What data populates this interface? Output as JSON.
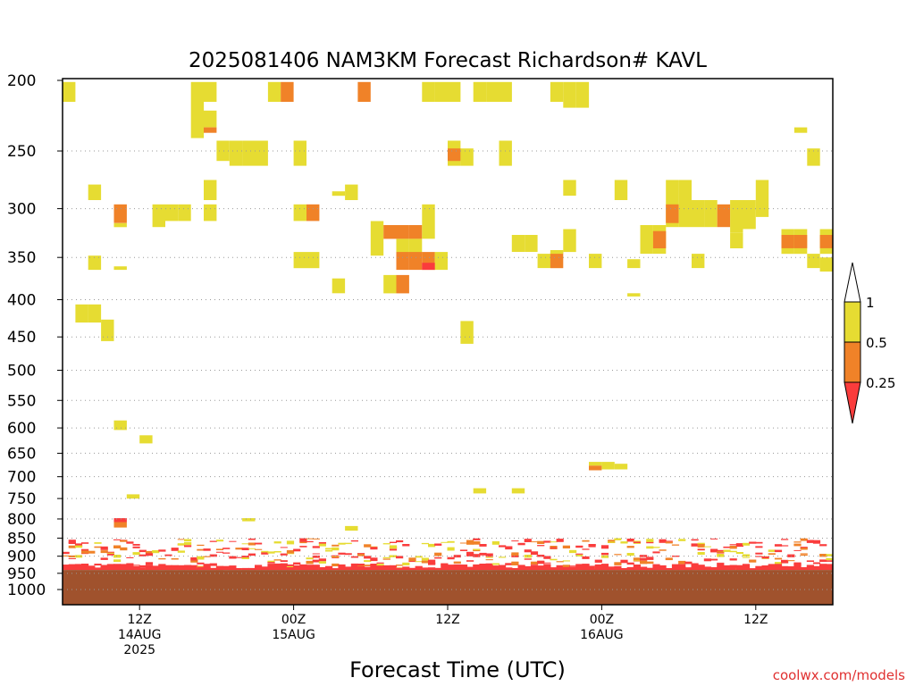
{
  "chart_data": {
    "type": "heatmap",
    "title": "2025081406 NAM3KM Forecast Richardson# KAVL",
    "xlabel": "Forecast Time (UTC)",
    "ylabel": "",
    "credit": "coolwx.com/models",
    "x_range_hours": [
      0,
      60
    ],
    "y_scale": "log-pressure",
    "y_range_hpa": [
      200,
      1000
    ],
    "y_ticks": [
      200,
      250,
      300,
      350,
      400,
      450,
      500,
      550,
      600,
      650,
      700,
      750,
      800,
      850,
      900,
      950,
      1000
    ],
    "x_ticks": [
      {
        "hour": 6,
        "lines": [
          "12Z",
          "14AUG",
          "2025"
        ]
      },
      {
        "hour": 18,
        "lines": [
          "00Z",
          "15AUG"
        ]
      },
      {
        "hour": 30,
        "lines": [
          "12Z"
        ]
      },
      {
        "hour": 42,
        "lines": [
          "00Z",
          "16AUG"
        ]
      },
      {
        "hour": 54,
        "lines": [
          "12Z"
        ]
      }
    ],
    "grid": {
      "y": "dotted"
    },
    "colorbar": {
      "labels": [
        "1",
        "0.5",
        "0.25"
      ],
      "bins": [
        {
          "label": "0.5 - 1",
          "color": "#e6dc32"
        },
        {
          "label": "0.25 - 0.5",
          "color": "#f08228"
        },
        {
          "label": "< 0.25",
          "color": "#fa3c3c"
        }
      ],
      "colors": {
        "high": "#ffffff",
        "mid_high": "#e6dc32",
        "mid_low": "#f08228",
        "low": "#fa3c3c"
      }
    },
    "ground": {
      "color": "#a0522d",
      "pressure_top_hpa": 940
    },
    "colors": {
      "yellow": "#e6dc32",
      "orange": "#f08228",
      "red": "#fa3c3c"
    },
    "cells": [
      [
        0.5,
        201,
        214,
        "y"
      ],
      [
        10.5,
        201,
        214,
        "y"
      ],
      [
        11.5,
        201,
        214,
        "y"
      ],
      [
        10.5,
        214,
        240,
        "y"
      ],
      [
        11.5,
        220,
        232,
        "y"
      ],
      [
        11.5,
        232,
        236,
        "o"
      ],
      [
        16.5,
        201,
        214,
        "y"
      ],
      [
        17.5,
        201,
        214,
        "o"
      ],
      [
        23.5,
        201,
        214,
        "o"
      ],
      [
        28.5,
        201,
        214,
        "y"
      ],
      [
        29.5,
        201,
        214,
        "y"
      ],
      [
        30.5,
        201,
        214,
        "y"
      ],
      [
        32.5,
        201,
        214,
        "y"
      ],
      [
        33.5,
        201,
        214,
        "y"
      ],
      [
        34.5,
        201,
        214,
        "y"
      ],
      [
        38.5,
        201,
        214,
        "y"
      ],
      [
        39.5,
        201,
        218,
        "y"
      ],
      [
        40.5,
        201,
        218,
        "y"
      ],
      [
        13.5,
        242,
        262,
        "y"
      ],
      [
        14.5,
        242,
        262,
        "y"
      ],
      [
        15.5,
        242,
        262,
        "y"
      ],
      [
        12.5,
        242,
        258,
        "y"
      ],
      [
        18.5,
        242,
        262,
        "y"
      ],
      [
        30.5,
        242,
        262,
        "y"
      ],
      [
        30.5,
        248,
        258,
        "o"
      ],
      [
        31.5,
        248,
        262,
        "y"
      ],
      [
        34.5,
        242,
        262,
        "y"
      ],
      [
        57.5,
        232,
        236,
        "y"
      ],
      [
        58.5,
        248,
        262,
        "y"
      ],
      [
        2.5,
        278,
        292,
        "y"
      ],
      [
        11.5,
        274,
        292,
        "y"
      ],
      [
        22.5,
        278,
        292,
        "y"
      ],
      [
        21.5,
        284,
        288,
        "y"
      ],
      [
        39.5,
        274,
        288,
        "y"
      ],
      [
        43.5,
        274,
        292,
        "y"
      ],
      [
        47.5,
        274,
        292,
        "y"
      ],
      [
        48.5,
        274,
        292,
        "y"
      ],
      [
        54.5,
        274,
        308,
        "y"
      ],
      [
        4.5,
        296,
        314,
        "o"
      ],
      [
        4.5,
        314,
        318,
        "y"
      ],
      [
        7.5,
        296,
        318,
        "y"
      ],
      [
        8.5,
        296,
        312,
        "y"
      ],
      [
        9.5,
        296,
        312,
        "y"
      ],
      [
        11.5,
        296,
        312,
        "y"
      ],
      [
        18.5,
        296,
        312,
        "y"
      ],
      [
        19.5,
        296,
        312,
        "o"
      ],
      [
        24.5,
        312,
        348,
        "y"
      ],
      [
        25.5,
        316,
        330,
        "o"
      ],
      [
        26.5,
        316,
        330,
        "o"
      ],
      [
        27.5,
        316,
        330,
        "o"
      ],
      [
        28.5,
        296,
        330,
        "y"
      ],
      [
        26.5,
        330,
        348,
        "y"
      ],
      [
        27.5,
        330,
        348,
        "y"
      ],
      [
        47.5,
        292,
        318,
        "y"
      ],
      [
        47.5,
        296,
        314,
        "o"
      ],
      [
        48.5,
        292,
        318,
        "y"
      ],
      [
        49.5,
        292,
        318,
        "y"
      ],
      [
        50.5,
        292,
        318,
        "y"
      ],
      [
        51.5,
        296,
        318,
        "o"
      ],
      [
        52.5,
        292,
        324,
        "y"
      ],
      [
        53.5,
        292,
        320,
        "y"
      ],
      [
        46.5,
        316,
        346,
        "y"
      ],
      [
        46.5,
        322,
        340,
        "o"
      ],
      [
        45.5,
        322,
        340,
        "o"
      ],
      [
        45.5,
        316,
        346,
        "y"
      ],
      [
        52.5,
        324,
        340,
        "y"
      ],
      [
        56.5,
        320,
        346,
        "y"
      ],
      [
        56.5,
        326,
        340,
        "o"
      ],
      [
        57.5,
        320,
        346,
        "y"
      ],
      [
        57.5,
        326,
        340,
        "o"
      ],
      [
        59.5,
        320,
        346,
        "y"
      ],
      [
        59.5,
        326,
        340,
        "o"
      ],
      [
        35.5,
        326,
        344,
        "y"
      ],
      [
        36.5,
        326,
        344,
        "y"
      ],
      [
        39.5,
        320,
        344,
        "y"
      ],
      [
        18.5,
        344,
        362,
        "y"
      ],
      [
        19.5,
        344,
        362,
        "y"
      ],
      [
        26.5,
        344,
        364,
        "o"
      ],
      [
        27.5,
        344,
        364,
        "o"
      ],
      [
        28.5,
        344,
        364,
        "o"
      ],
      [
        29.5,
        344,
        364,
        "y"
      ],
      [
        28.5,
        356,
        364,
        "r"
      ],
      [
        37.5,
        346,
        362,
        "y"
      ],
      [
        38.5,
        344,
        362,
        "o"
      ],
      [
        38.5,
        342,
        346,
        "y"
      ],
      [
        41.5,
        346,
        362,
        "y"
      ],
      [
        44.5,
        352,
        362,
        "y"
      ],
      [
        49.5,
        346,
        362,
        "y"
      ],
      [
        58.5,
        346,
        362,
        "y"
      ],
      [
        59.5,
        350,
        366,
        "y"
      ],
      [
        2.5,
        348,
        364,
        "y"
      ],
      [
        4.5,
        360,
        364,
        "y"
      ],
      [
        21.5,
        374,
        392,
        "y"
      ],
      [
        25.5,
        370,
        392,
        "y"
      ],
      [
        26.5,
        370,
        392,
        "o"
      ],
      [
        44.5,
        392,
        396,
        "y"
      ],
      [
        1.5,
        406,
        430,
        "y"
      ],
      [
        2.5,
        406,
        430,
        "y"
      ],
      [
        3.5,
        426,
        456,
        "y"
      ],
      [
        31.5,
        428,
        460,
        "y"
      ],
      [
        4.5,
        586,
        604,
        "y"
      ],
      [
        6.5,
        614,
        630,
        "y"
      ],
      [
        5.5,
        740,
        750,
        "y"
      ],
      [
        41.5,
        668,
        676,
        "y"
      ],
      [
        41.5,
        676,
        686,
        "o"
      ],
      [
        42.5,
        668,
        684,
        "y"
      ],
      [
        43.5,
        672,
        684,
        "y"
      ],
      [
        32.5,
        726,
        738,
        "y"
      ],
      [
        35.5,
        726,
        738,
        "y"
      ],
      [
        4.5,
        798,
        808,
        "r"
      ],
      [
        4.5,
        808,
        822,
        "o"
      ],
      [
        14.5,
        798,
        806,
        "y"
      ],
      [
        22.5,
        818,
        830,
        "y"
      ]
    ]
  }
}
